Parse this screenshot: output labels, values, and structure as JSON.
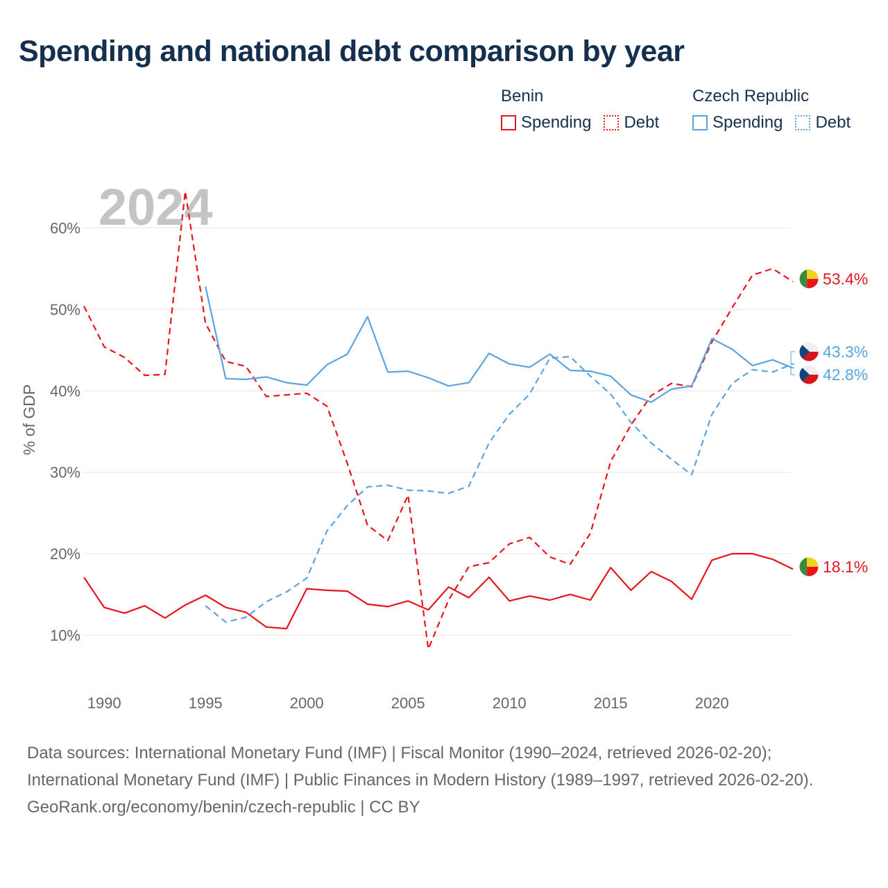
{
  "title": "Spending and national debt comparison by year",
  "legend": {
    "groups": [
      {
        "country": "Benin",
        "color": "#e8141c",
        "spending_label": "Spending",
        "debt_label": "Debt"
      },
      {
        "country": "Czech Republic",
        "color": "#5ba3e0",
        "spending_label": "Spending",
        "debt_label": "Debt"
      }
    ]
  },
  "footer": {
    "sources": "Data sources: International Monetary Fund (IMF) | Fiscal Monitor (1990–2024, retrieved 2026-02-20); International Monetary Fund (IMF) | Public Finances in Modern History (1989–1997, retrieved 2026-02-20).",
    "credit": "GeoRank.org/economy/benin/czech-republic | CC BY"
  },
  "chart_data": {
    "type": "line",
    "year_watermark": "2024",
    "ylabel": "% of GDP",
    "ylim": [
      4,
      64
    ],
    "xlim": [
      1989,
      2024
    ],
    "yticks": [
      10,
      20,
      30,
      40,
      50,
      60
    ],
    "ytick_labels": [
      "10%",
      "20%",
      "30%",
      "40%",
      "50%",
      "60%"
    ],
    "xticks": [
      1990,
      1995,
      2000,
      2005,
      2010,
      2015,
      2020
    ],
    "xtick_labels": [
      "1990",
      "1995",
      "2000",
      "2005",
      "2010",
      "2015",
      "2020"
    ],
    "grid": true,
    "series": [
      {
        "name": "Benin Spending",
        "country": "Benin",
        "kind": "spending",
        "color": "#e8141c",
        "dashed": false,
        "end_label": "18.1%",
        "flag": "benin",
        "x": [
          1989,
          1990,
          1991,
          1992,
          1993,
          1994,
          1995,
          1996,
          1997,
          1998,
          1999,
          2000,
          2001,
          2002,
          2003,
          2004,
          2005,
          2006,
          2007,
          2008,
          2009,
          2010,
          2011,
          2012,
          2013,
          2014,
          2015,
          2016,
          2017,
          2018,
          2019,
          2020,
          2021,
          2022,
          2023,
          2024
        ],
        "y": [
          17.1,
          13.4,
          12.7,
          13.6,
          12.1,
          13.7,
          14.9,
          13.4,
          12.8,
          11.0,
          10.8,
          15.7,
          15.5,
          15.4,
          13.8,
          13.5,
          14.2,
          13.1,
          15.9,
          14.6,
          17.1,
          14.2,
          14.8,
          14.3,
          15.0,
          14.3,
          18.3,
          15.5,
          17.8,
          16.6,
          14.4,
          19.2,
          20.0,
          20.0,
          19.3,
          18.1
        ]
      },
      {
        "name": "Benin Debt",
        "country": "Benin",
        "kind": "debt",
        "color": "#e8141c",
        "dashed": true,
        "end_label": "53.4%",
        "flag": "benin",
        "x": [
          1989,
          1990,
          1991,
          1992,
          1993,
          1994,
          1995,
          1996,
          1997,
          1998,
          1999,
          2000,
          2001,
          2002,
          2003,
          2004,
          2005,
          2006,
          2007,
          2008,
          2009,
          2010,
          2011,
          2012,
          2013,
          2014,
          2015,
          2016,
          2017,
          2018,
          2019,
          2020,
          2021,
          2022,
          2023,
          2024
        ],
        "y": [
          50.4,
          45.4,
          44.1,
          41.9,
          42.0,
          64.5,
          48.3,
          43.6,
          43.0,
          39.3,
          39.5,
          39.7,
          38.1,
          31.1,
          23.5,
          21.6,
          27.2,
          8.3,
          14.3,
          18.4,
          18.9,
          21.2,
          22.0,
          19.6,
          18.7,
          22.5,
          31.3,
          35.8,
          39.4,
          40.9,
          40.5,
          46.0,
          50.2,
          54.2,
          55.0,
          53.4
        ]
      },
      {
        "name": "Czech Republic Spending",
        "country": "Czech Republic",
        "kind": "spending",
        "color": "#5ba3e0",
        "dashed": false,
        "end_label": "42.8%",
        "flag": "czech",
        "x": [
          1995,
          1996,
          1997,
          1998,
          1999,
          2000,
          2001,
          2002,
          2003,
          2004,
          2005,
          2006,
          2007,
          2008,
          2009,
          2010,
          2011,
          2012,
          2013,
          2014,
          2015,
          2016,
          2017,
          2018,
          2019,
          2020,
          2021,
          2022,
          2023,
          2024
        ],
        "y": [
          52.8,
          41.5,
          41.4,
          41.7,
          41.0,
          40.7,
          43.2,
          44.5,
          49.1,
          42.3,
          42.4,
          41.6,
          40.6,
          41.0,
          44.6,
          43.3,
          42.9,
          44.5,
          42.5,
          42.4,
          41.8,
          39.5,
          38.6,
          40.2,
          40.6,
          46.4,
          45.1,
          43.1,
          43.8,
          42.8
        ]
      },
      {
        "name": "Czech Republic Debt",
        "country": "Czech Republic",
        "kind": "debt",
        "color": "#5ba3e0",
        "dashed": true,
        "end_label": "43.3%",
        "flag": "czech",
        "x": [
          1995,
          1996,
          1997,
          1998,
          1999,
          2000,
          2001,
          2002,
          2003,
          2004,
          2005,
          2006,
          2007,
          2008,
          2009,
          2010,
          2011,
          2012,
          2013,
          2014,
          2015,
          2016,
          2017,
          2018,
          2019,
          2020,
          2021,
          2022,
          2023,
          2024
        ],
        "y": [
          13.6,
          11.6,
          12.2,
          14.1,
          15.3,
          17.0,
          22.8,
          25.9,
          28.2,
          28.4,
          27.8,
          27.7,
          27.4,
          28.3,
          33.6,
          37.1,
          39.6,
          44.0,
          44.2,
          41.8,
          39.6,
          36.1,
          33.6,
          31.6,
          29.7,
          37.1,
          40.9,
          42.6,
          42.3,
          43.3
        ]
      }
    ]
  }
}
